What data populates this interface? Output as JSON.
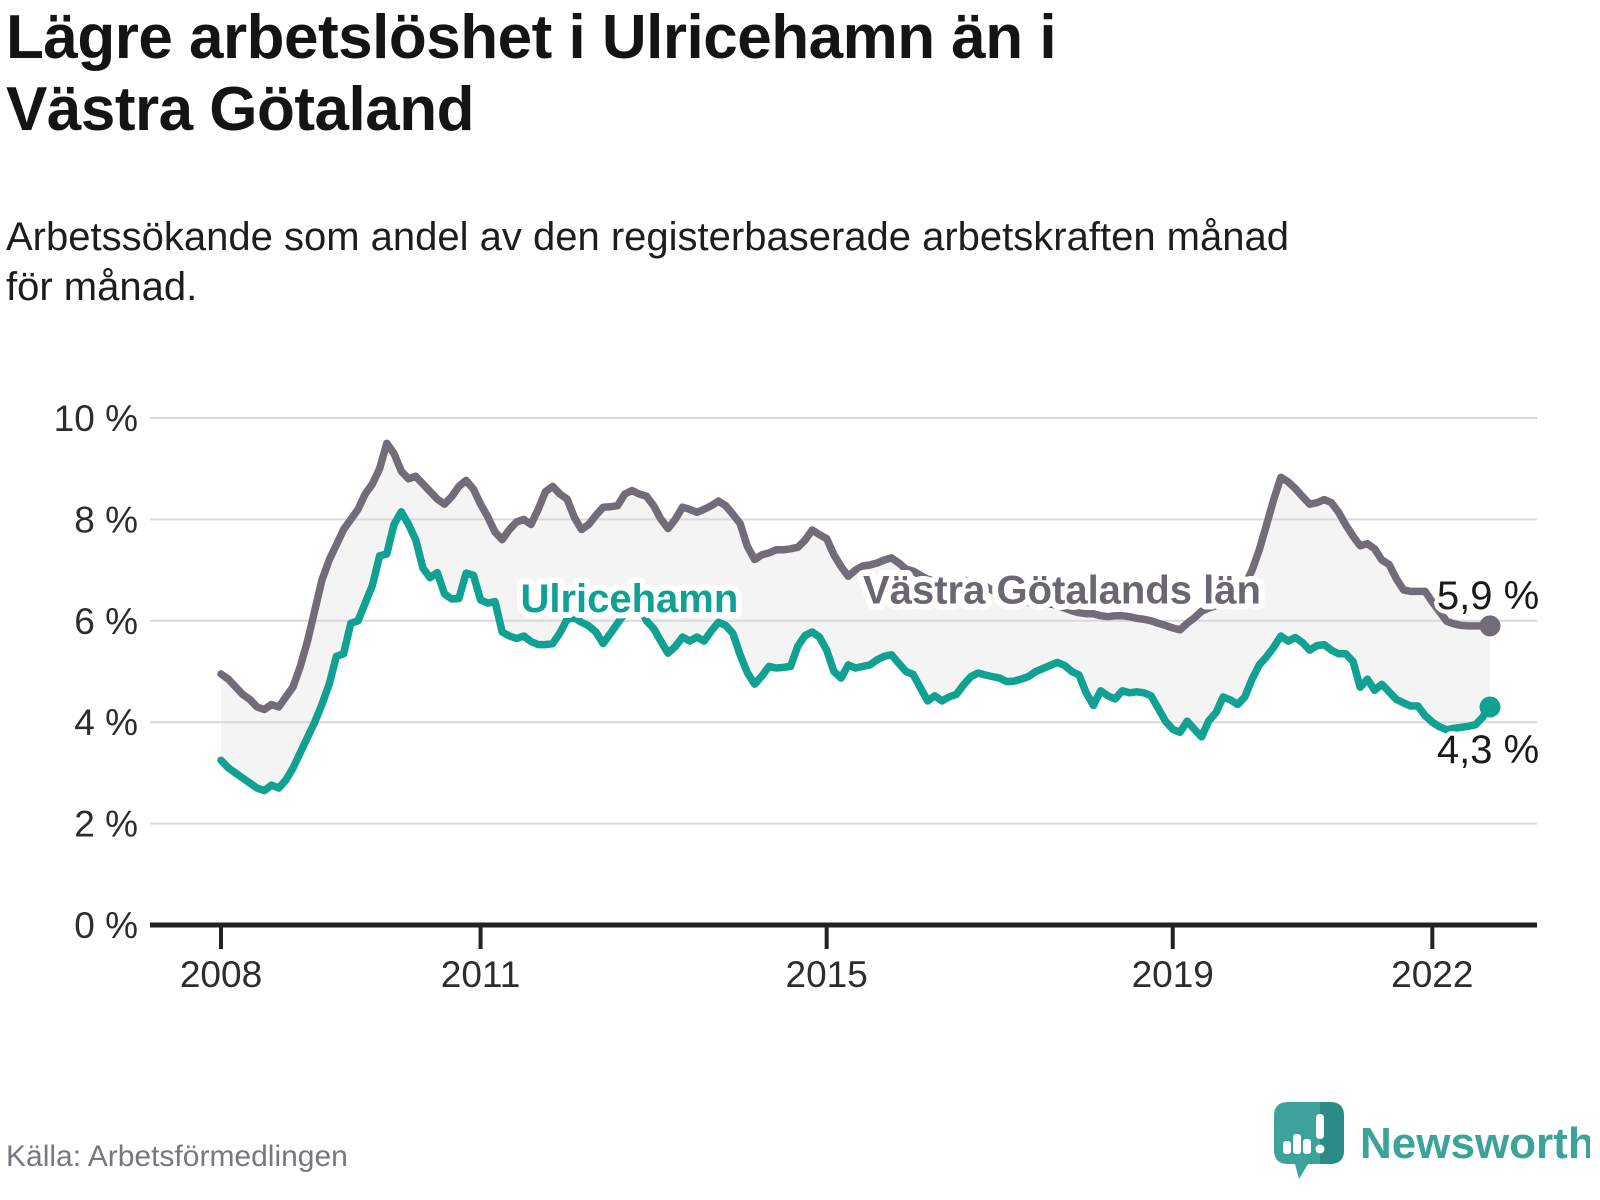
{
  "title_lines": [
    "Lägre arbetslöshet i Ulricehamn än i",
    "Västra Götaland"
  ],
  "subtitle_lines": [
    "Arbetssökande som andel av den registerbaserade arbetskraften månad",
    "för månad."
  ],
  "source": "Källa: Arbetsförmedlingen",
  "brand": {
    "name": "Newsworthy",
    "color": "#3da29a"
  },
  "colors": {
    "accent_teal": "#10a192",
    "neutral_gray": "#716c77",
    "grid": "#d9d9d9",
    "axis": "#222222",
    "fill_between": "#f4f4f4",
    "value_label": "#1a1a1a",
    "tick_label": "#2d2d2d"
  },
  "chart_data": {
    "type": "line",
    "x_start": "2008-01",
    "x_end": "2022-09",
    "x_step": "month",
    "ylim": [
      0,
      10
    ],
    "grid": true,
    "legend_position": "inline-labels",
    "x_ticks": [
      {
        "year": 2008,
        "label": "2008"
      },
      {
        "year": 2011,
        "label": "2011"
      },
      {
        "year": 2015,
        "label": "2015"
      },
      {
        "year": 2019,
        "label": "2019"
      },
      {
        "year": 2022,
        "label": "2022"
      }
    ],
    "y_ticks": [
      {
        "value": 0,
        "label": "0 %"
      },
      {
        "value": 2,
        "label": "2 %"
      },
      {
        "value": 4,
        "label": "4 %"
      },
      {
        "value": 6,
        "label": "6 %"
      },
      {
        "value": 8,
        "label": "8 %"
      },
      {
        "value": 10,
        "label": "10 %"
      }
    ],
    "series": [
      {
        "name": "Västra Götalands län",
        "color": "#716c77",
        "label_color": "#6b6670",
        "end_label": "5,9 %",
        "end_value": 5.9,
        "label_pos": {
          "year": 2017.72,
          "value": 6.62
        },
        "values": [
          4.95,
          4.85,
          4.7,
          4.55,
          4.45,
          4.3,
          4.25,
          4.35,
          4.3,
          4.5,
          4.7,
          5.1,
          5.6,
          6.2,
          6.8,
          7.2,
          7.5,
          7.8,
          8.0,
          8.2,
          8.5,
          8.7,
          9.0,
          9.5,
          9.3,
          8.95,
          8.8,
          8.85,
          8.7,
          8.55,
          8.4,
          8.3,
          8.45,
          8.65,
          8.77,
          8.6,
          8.3,
          8.05,
          7.75,
          7.6,
          7.8,
          7.95,
          8.0,
          7.9,
          8.2,
          8.55,
          8.65,
          8.5,
          8.4,
          8.04,
          7.8,
          7.9,
          8.08,
          8.24,
          8.25,
          8.27,
          8.5,
          8.57,
          8.5,
          8.46,
          8.27,
          8.01,
          7.82,
          8.0,
          8.24,
          8.2,
          8.14,
          8.2,
          8.27,
          8.36,
          8.27,
          8.1,
          7.92,
          7.47,
          7.21,
          7.3,
          7.34,
          7.4,
          7.4,
          7.42,
          7.45,
          7.59,
          7.79,
          7.7,
          7.62,
          7.3,
          7.07,
          6.88,
          7.0,
          7.08,
          7.1,
          7.14,
          7.2,
          7.24,
          7.14,
          7.02,
          6.98,
          6.9,
          6.82,
          6.78,
          6.75,
          6.72,
          6.75,
          6.8,
          6.78,
          6.72,
          6.68,
          6.6,
          6.55,
          6.5,
          6.45,
          6.4,
          6.36,
          6.32,
          6.3,
          6.34,
          6.3,
          6.25,
          6.2,
          6.16,
          6.14,
          6.14,
          6.1,
          6.08,
          6.1,
          6.1,
          6.08,
          6.05,
          6.03,
          6.0,
          5.95,
          5.91,
          5.86,
          5.82,
          5.95,
          6.06,
          6.19,
          6.25,
          6.3,
          6.35,
          6.4,
          6.5,
          6.7,
          7.0,
          7.4,
          7.89,
          8.39,
          8.83,
          8.74,
          8.61,
          8.45,
          8.3,
          8.33,
          8.39,
          8.33,
          8.14,
          7.89,
          7.67,
          7.48,
          7.52,
          7.42,
          7.2,
          7.11,
          6.83,
          6.61,
          6.58,
          6.58,
          6.58,
          6.37,
          6.18,
          5.99,
          5.94,
          5.91,
          5.9,
          5.9,
          5.9,
          5.9
        ]
      },
      {
        "name": "Ulricehamn",
        "color": "#10a192",
        "label_color": "#10a192",
        "end_label": "4,3 %",
        "end_value": 4.3,
        "label_pos": {
          "year": 2012.72,
          "value": 6.45
        },
        "values": [
          3.25,
          3.1,
          3.0,
          2.9,
          2.8,
          2.7,
          2.65,
          2.76,
          2.7,
          2.86,
          3.1,
          3.4,
          3.7,
          4.0,
          4.35,
          4.75,
          5.3,
          5.35,
          5.95,
          6.0,
          6.35,
          6.7,
          7.28,
          7.32,
          7.9,
          8.15,
          7.9,
          7.6,
          7.04,
          6.85,
          6.95,
          6.53,
          6.43,
          6.44,
          6.94,
          6.9,
          6.41,
          6.35,
          6.38,
          5.78,
          5.7,
          5.65,
          5.7,
          5.59,
          5.53,
          5.53,
          5.55,
          5.76,
          6.03,
          6.06,
          5.97,
          5.9,
          5.78,
          5.55,
          5.75,
          5.95,
          6.15,
          6.38,
          6.3,
          6.0,
          5.85,
          5.6,
          5.36,
          5.49,
          5.68,
          5.6,
          5.68,
          5.6,
          5.8,
          5.97,
          5.91,
          5.75,
          5.33,
          4.98,
          4.75,
          4.91,
          5.1,
          5.07,
          5.08,
          5.1,
          5.5,
          5.71,
          5.78,
          5.68,
          5.42,
          5.0,
          4.87,
          5.13,
          5.07,
          5.1,
          5.13,
          5.23,
          5.3,
          5.33,
          5.16,
          5.0,
          4.94,
          4.68,
          4.42,
          4.52,
          4.42,
          4.5,
          4.55,
          4.74,
          4.9,
          4.97,
          4.93,
          4.9,
          4.87,
          4.8,
          4.81,
          4.85,
          4.9,
          5.0,
          5.06,
          5.12,
          5.18,
          5.12,
          5.0,
          4.93,
          4.58,
          4.33,
          4.62,
          4.52,
          4.46,
          4.62,
          4.58,
          4.6,
          4.58,
          4.52,
          4.27,
          4.02,
          3.86,
          3.8,
          4.02,
          3.86,
          3.71,
          4.03,
          4.19,
          4.5,
          4.44,
          4.35,
          4.5,
          4.85,
          5.13,
          5.29,
          5.48,
          5.7,
          5.6,
          5.67,
          5.57,
          5.42,
          5.51,
          5.53,
          5.42,
          5.35,
          5.35,
          5.2,
          4.69,
          4.85,
          4.63,
          4.75,
          4.6,
          4.45,
          4.38,
          4.32,
          4.32,
          4.13,
          4.0,
          3.91,
          3.85,
          3.88,
          3.9,
          3.92,
          3.95,
          4.1,
          4.3
        ]
      }
    ]
  }
}
